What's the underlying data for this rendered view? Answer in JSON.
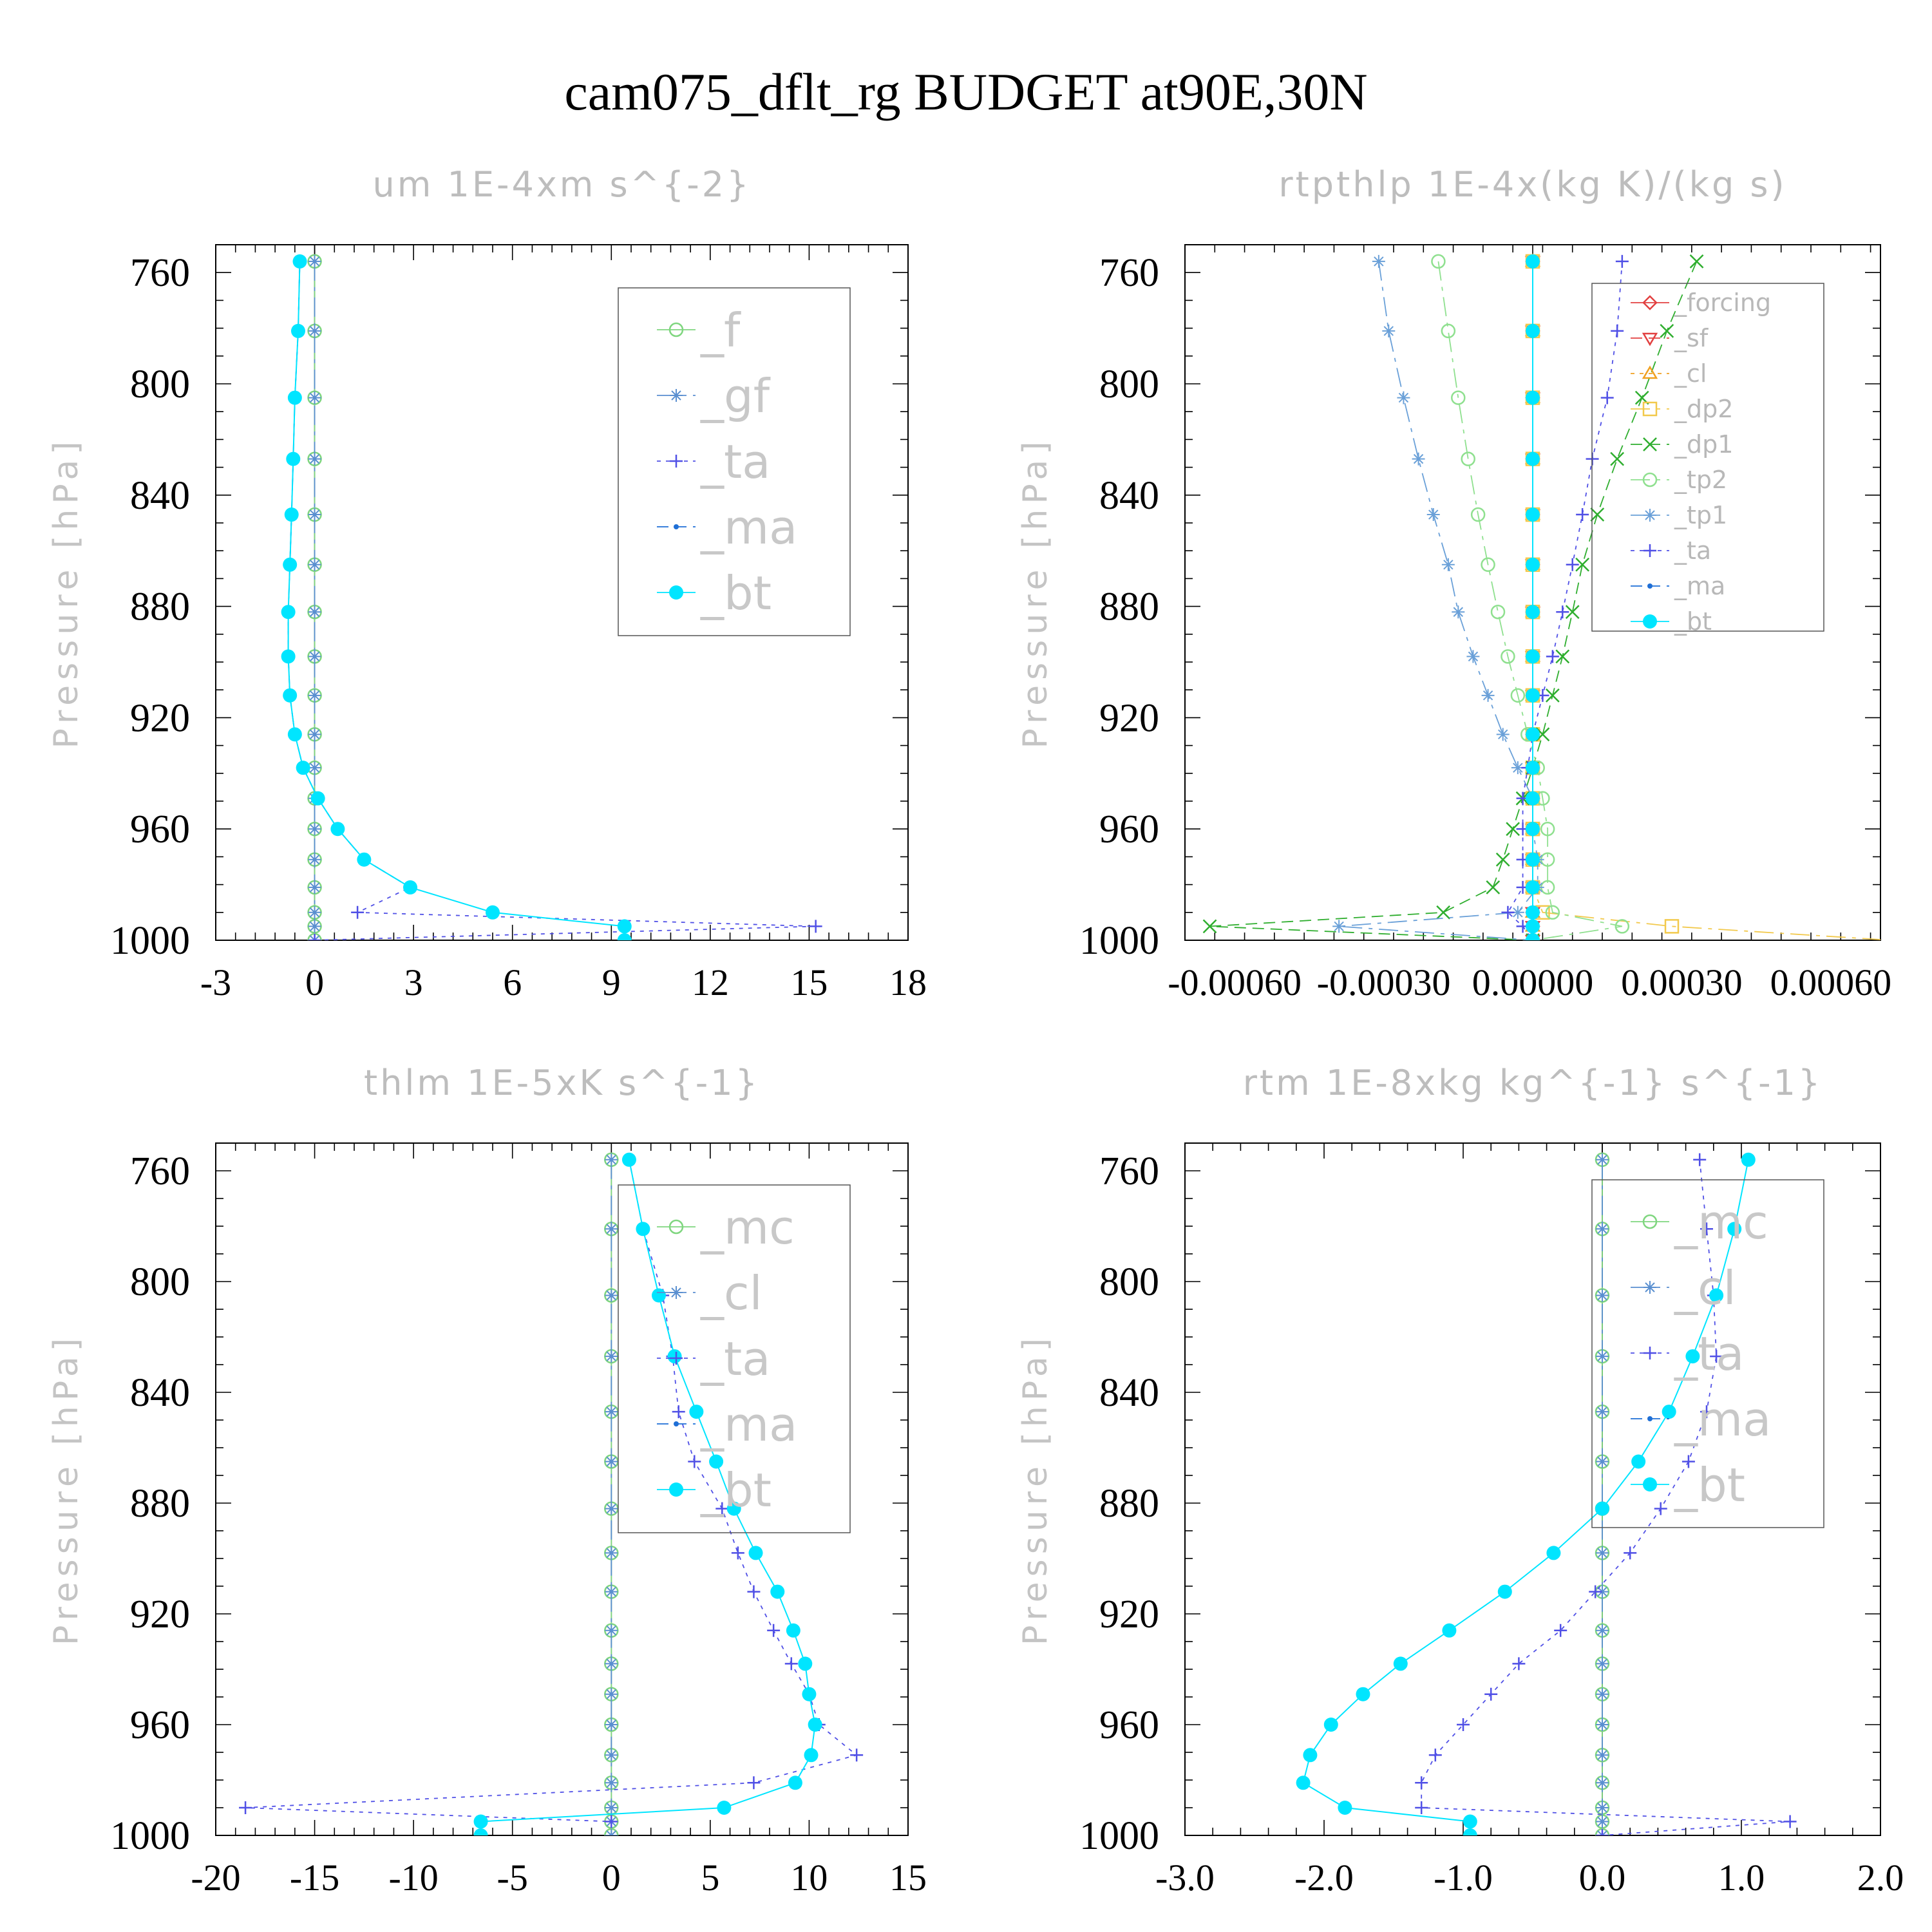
{
  "title": "cam075_dflt_rg  BUDGET at90E,30N",
  "colors": {
    "_f": "#7fd67f",
    "_mc": "#7fd67f",
    "_gf": "#5a8fd0",
    "_cl": "#5a8fd0",
    "_ta": "#5050e6",
    "_ma": "#1f6fd6",
    "_bt": "#00e5ff",
    "_forcing": "#e24040",
    "_sf": "#e24040",
    "_cl_o": "#f0a020",
    "_dp2": "#f2c94c",
    "_dp1": "#2fae2f",
    "_tp2": "#8fe08f",
    "_tp1": "#6aa0d8"
  },
  "chart_data": [
    {
      "type": "line",
      "title": "um   1E-4xm s^{-2}",
      "ylabel": "Pressure [hPa]",
      "ylim": [
        1000,
        750
      ],
      "xlim": [
        -3,
        18
      ],
      "xticks": [
        -3,
        0,
        3,
        6,
        9,
        12,
        15,
        18
      ],
      "xtick_labels": [
        "-3",
        "0",
        "3",
        "6",
        "9",
        "12",
        "15",
        "18"
      ],
      "yticks": [
        760,
        800,
        840,
        880,
        920,
        960,
        1000
      ],
      "ytick_labels": [
        "760",
        "800",
        "840",
        "880",
        "920",
        "960",
        "1000"
      ],
      "legend": "top-right",
      "legend_style": "large",
      "p": [
        756,
        781,
        805,
        827,
        847,
        865,
        882,
        898,
        912,
        926,
        938,
        949,
        960,
        971,
        981,
        990,
        995,
        1000
      ],
      "series": [
        {
          "name": "_f",
          "color_key": "_f",
          "marker": "circle-open",
          "dash": "",
          "values": [
            0,
            0,
            0,
            0,
            0,
            0,
            0,
            0,
            0,
            0,
            0,
            0,
            0,
            0,
            0,
            0,
            0,
            0
          ]
        },
        {
          "name": "_gf",
          "color_key": "_gf",
          "marker": "asterisk",
          "dash": "30 10 6 10",
          "values": [
            0,
            0,
            0,
            0,
            0,
            0,
            0,
            0,
            0,
            0,
            0,
            0,
            0,
            0,
            0,
            0,
            0,
            0
          ]
        },
        {
          "name": "_ta",
          "color_key": "_ta",
          "marker": "plus",
          "dash": "6 8",
          "values": [
            -0.45,
            -0.5,
            -0.6,
            -0.65,
            -0.7,
            -0.75,
            -0.8,
            -0.8,
            -0.75,
            -0.6,
            -0.35,
            0.1,
            0.7,
            1.5,
            2.9,
            1.3,
            15.2,
            0
          ]
        },
        {
          "name": "_ma",
          "color_key": "_ma",
          "marker": "dot-small",
          "dash": "18 10",
          "values": [
            -0.45,
            -0.5,
            -0.6,
            -0.65,
            -0.7,
            -0.75,
            -0.8,
            -0.8,
            -0.75,
            -0.6,
            -0.35,
            0.1,
            0.7,
            1.5,
            2.9,
            null,
            null,
            null
          ]
        },
        {
          "name": "_bt",
          "color_key": "_bt",
          "marker": "dot-filled",
          "dash": "",
          "values": [
            -0.45,
            -0.5,
            -0.6,
            -0.65,
            -0.7,
            -0.75,
            -0.8,
            -0.8,
            -0.75,
            -0.6,
            -0.35,
            0.1,
            0.7,
            1.5,
            2.9,
            5.4,
            9.4,
            9.4
          ]
        }
      ]
    },
    {
      "type": "line",
      "title": "rtpthlp   1E-4x(kg K)/(kg s)",
      "ylabel": "Pressure [hPa]",
      "ylim": [
        1000,
        750
      ],
      "xlim": [
        -0.0007,
        0.0007
      ],
      "xticks": [
        -0.0006,
        -0.0003,
        0.0,
        0.0003,
        0.0006
      ],
      "xtick_labels": [
        "-0.00060",
        "-0.00030",
        "0.00000",
        "0.00030",
        "0.00060"
      ],
      "yticks": [
        760,
        800,
        840,
        880,
        920,
        960,
        1000
      ],
      "ytick_labels": [
        "760",
        "800",
        "840",
        "880",
        "920",
        "960",
        "1000"
      ],
      "legend": "top-right",
      "legend_style": "small",
      "p": [
        756,
        781,
        805,
        827,
        847,
        865,
        882,
        898,
        912,
        926,
        938,
        949,
        960,
        971,
        981,
        990,
        995,
        1000
      ],
      "series": [
        {
          "name": "_forcing",
          "color_key": "_forcing",
          "marker": "diamond-open",
          "dash": "",
          "values": [
            0,
            0,
            0,
            0,
            0,
            0,
            0,
            0,
            0,
            0,
            0,
            0,
            0,
            0,
            0,
            0,
            0,
            0
          ]
        },
        {
          "name": "_sf",
          "color_key": "_sf",
          "marker": "tri-down",
          "dash": "18 10",
          "values": [
            0,
            0,
            0,
            0,
            0,
            0,
            0,
            0,
            0,
            0,
            0,
            0,
            0,
            0,
            0,
            0,
            0,
            0
          ]
        },
        {
          "name": "_cl",
          "color_key": "_cl_o",
          "marker": "tri-up",
          "dash": "6 8",
          "values": [
            0,
            0,
            0,
            0,
            0,
            0,
            0,
            0,
            0,
            0,
            0,
            0,
            0,
            0,
            0,
            0,
            0,
            0
          ]
        },
        {
          "name": "_dp2",
          "color_key": "_dp2",
          "marker": "square-open",
          "dash": "30 10 6 10",
          "values": [
            0,
            0,
            0,
            0,
            0,
            0,
            0,
            0,
            0,
            0,
            0,
            0,
            0,
            0,
            0,
            2e-05,
            0.00028,
            0.00072
          ]
        },
        {
          "name": "_dp1",
          "color_key": "_dp1",
          "marker": "x",
          "dash": "18 10",
          "values": [
            0.00033,
            0.00027,
            0.00022,
            0.00017,
            0.00013,
            0.0001,
            8e-05,
            6e-05,
            4e-05,
            2e-05,
            0,
            -2e-05,
            -4e-05,
            -6e-05,
            -8e-05,
            -0.00018,
            -0.00065,
            0
          ]
        },
        {
          "name": "_tp2",
          "color_key": "_tp2",
          "marker": "circle-open",
          "dash": "30 10 6 10",
          "values": [
            -0.00019,
            -0.00017,
            -0.00015,
            -0.00013,
            -0.00011,
            -9e-05,
            -7e-05,
            -5e-05,
            -3e-05,
            -1e-05,
            1e-05,
            2e-05,
            3e-05,
            3e-05,
            3e-05,
            4e-05,
            0.00018,
            0
          ]
        },
        {
          "name": "_tp1",
          "color_key": "_tp1",
          "marker": "asterisk",
          "dash": "30 10 6 10",
          "values": [
            -0.00031,
            -0.00029,
            -0.00026,
            -0.00023,
            -0.0002,
            -0.00017,
            -0.00015,
            -0.00012,
            -9e-05,
            -6e-05,
            -3e-05,
            0,
            0,
            1e-05,
            1e-05,
            -3e-05,
            -0.00039,
            0
          ]
        },
        {
          "name": "_ta",
          "color_key": "_ta",
          "marker": "plus",
          "dash": "6 8",
          "values": [
            0.00018,
            0.00017,
            0.00015,
            0.00012,
            0.0001,
            8e-05,
            6e-05,
            4e-05,
            2e-05,
            0,
            -1e-05,
            -2e-05,
            -2e-05,
            -2e-05,
            -2e-05,
            -5e-05,
            -2e-05,
            0
          ]
        },
        {
          "name": "_ma",
          "color_key": "_ma",
          "marker": "dot-small",
          "dash": "18 10",
          "values": [
            0,
            0,
            0,
            0,
            0,
            0,
            0,
            0,
            0,
            0,
            0,
            0,
            0,
            0,
            0,
            0,
            0,
            0
          ]
        },
        {
          "name": "_bt",
          "color_key": "_bt",
          "marker": "dot-filled",
          "dash": "",
          "values": [
            0,
            0,
            0,
            0,
            0,
            0,
            0,
            0,
            0,
            0,
            0,
            0,
            0,
            0,
            0,
            0,
            0,
            0
          ]
        }
      ]
    },
    {
      "type": "line",
      "title": "thlm   1E-5xK s^{-1}",
      "ylabel": "Pressure [hPa]",
      "ylim": [
        1000,
        750
      ],
      "xlim": [
        -20,
        15
      ],
      "xticks": [
        -20,
        -15,
        -10,
        -5,
        0,
        5,
        10,
        15
      ],
      "xtick_labels": [
        "-20",
        "-15",
        "-10",
        "-5",
        "0",
        "5",
        "10",
        "15"
      ],
      "yticks": [
        760,
        800,
        840,
        880,
        920,
        960,
        1000
      ],
      "ytick_labels": [
        "760",
        "800",
        "840",
        "880",
        "920",
        "960",
        "1000"
      ],
      "legend": "top-right",
      "legend_style": "large",
      "p": [
        756,
        781,
        805,
        827,
        847,
        865,
        882,
        898,
        912,
        926,
        938,
        949,
        960,
        971,
        981,
        990,
        995,
        1000
      ],
      "series": [
        {
          "name": "_mc",
          "color_key": "_mc",
          "marker": "circle-open",
          "dash": "",
          "values": [
            0,
            0,
            0,
            0,
            0,
            0,
            0,
            0,
            0,
            0,
            0,
            0,
            0,
            0,
            0,
            0,
            0,
            0
          ]
        },
        {
          "name": "_cl",
          "color_key": "_cl",
          "marker": "asterisk",
          "dash": "30 10 6 10",
          "values": [
            0,
            0,
            0,
            0,
            0,
            0,
            0,
            0,
            0,
            0,
            0,
            0,
            0,
            0,
            0,
            0,
            0,
            0
          ]
        },
        {
          "name": "_ta",
          "color_key": "_ta",
          "marker": "plus",
          "dash": "6 8",
          "values": [
            0.9,
            1.6,
            2.6,
            3.1,
            3.4,
            4.2,
            5.6,
            6.4,
            7.2,
            8.2,
            9.1,
            10,
            10.5,
            12.4,
            7.2,
            -18.5,
            0,
            null
          ]
        },
        {
          "name": "_ma",
          "color_key": "_ma",
          "marker": "dot-small",
          "dash": "18 10",
          "values": [
            null,
            null,
            null,
            null,
            null,
            null,
            null,
            null,
            null,
            null,
            null,
            null,
            null,
            null,
            null,
            null,
            null,
            null
          ]
        },
        {
          "name": "_bt",
          "color_key": "_bt",
          "marker": "dot-filled",
          "dash": "",
          "values": [
            0.9,
            1.6,
            2.4,
            3.2,
            4.3,
            5.3,
            6.2,
            7.3,
            8.4,
            9.2,
            9.8,
            10.0,
            10.3,
            10.1,
            9.3,
            5.7,
            -6.6,
            -6.6
          ]
        }
      ]
    },
    {
      "type": "line",
      "title": "rtm   1E-8xkg kg^{-1} s^{-1}",
      "ylabel": "Pressure [hPa]",
      "ylim": [
        1000,
        750
      ],
      "xlim": [
        -3.0,
        2.0
      ],
      "xticks": [
        -3.0,
        -2.0,
        -1.0,
        0.0,
        1.0,
        2.0
      ],
      "xtick_labels": [
        "-3.0",
        "-2.0",
        "-1.0",
        "0.0",
        "1.0",
        "2.0"
      ],
      "yticks": [
        760,
        800,
        840,
        880,
        920,
        960,
        1000
      ],
      "ytick_labels": [
        "760",
        "800",
        "840",
        "880",
        "920",
        "960",
        "1000"
      ],
      "legend": "top-right",
      "legend_style": "large",
      "p": [
        756,
        781,
        805,
        827,
        847,
        865,
        882,
        898,
        912,
        926,
        938,
        949,
        960,
        971,
        981,
        990,
        995,
        1000
      ],
      "series": [
        {
          "name": "_mc",
          "color_key": "_mc",
          "marker": "circle-open",
          "dash": "",
          "values": [
            0,
            0,
            0,
            0,
            0,
            0,
            0,
            0,
            0,
            0,
            0,
            0,
            0,
            0,
            0,
            0,
            0,
            0
          ]
        },
        {
          "name": "_cl",
          "color_key": "_cl",
          "marker": "asterisk",
          "dash": "30 10 6 10",
          "values": [
            0,
            0,
            0,
            0,
            0,
            0,
            0,
            0,
            0,
            0,
            0,
            0,
            0,
            0,
            0,
            0,
            0,
            0
          ]
        },
        {
          "name": "_ta",
          "color_key": "_ta",
          "marker": "plus",
          "dash": "6 8",
          "values": [
            0.7,
            0.75,
            0.8,
            0.82,
            0.75,
            0.62,
            0.42,
            0.2,
            -0.05,
            -0.3,
            -0.6,
            -0.8,
            -1.0,
            -1.2,
            -1.3,
            -1.3,
            1.35,
            0
          ]
        },
        {
          "name": "_ma",
          "color_key": "_ma",
          "marker": "dot-small",
          "dash": "18 10",
          "values": [
            null,
            null,
            null,
            null,
            null,
            null,
            null,
            null,
            null,
            null,
            null,
            null,
            null,
            null,
            null,
            null,
            null,
            null
          ]
        },
        {
          "name": "_bt",
          "color_key": "_bt",
          "marker": "dot-filled",
          "dash": "",
          "values": [
            1.05,
            0.95,
            0.82,
            0.65,
            0.48,
            0.26,
            0.0,
            -0.35,
            -0.7,
            -1.1,
            -1.45,
            -1.72,
            -1.95,
            -2.1,
            -2.15,
            -1.85,
            -0.95,
            -0.95
          ]
        }
      ]
    }
  ]
}
